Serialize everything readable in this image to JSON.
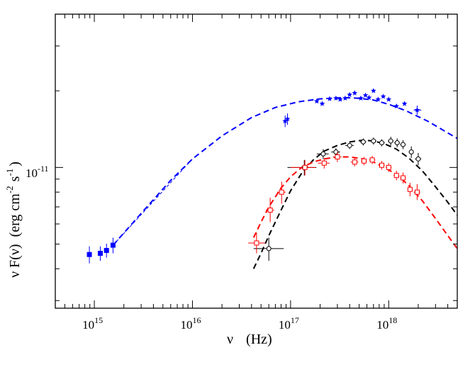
{
  "chart_data": {
    "type": "scatter",
    "title": "",
    "xlabel": "ν (Hz)",
    "ylabel": "ν F(ν) (erg cm-2 s-1)",
    "xscale": "log",
    "yscale": "log",
    "xlim": [
      400000000000000.0,
      5e+18
    ],
    "ylim": [
      2.8e-12,
      4e-11
    ],
    "y_reference_tick": {
      "base": "10",
      "exp": "-11",
      "value": 1e-11
    },
    "x_major_ticks": [
      {
        "base": "10",
        "exp": "15",
        "value": 1000000000000000.0
      },
      {
        "base": "10",
        "exp": "16",
        "value": 1e+16
      },
      {
        "base": "10",
        "exp": "17",
        "value": 1e+17
      },
      {
        "base": "10",
        "exp": "18",
        "value": 1e+18
      }
    ],
    "axis_label_parts": {
      "x_nu": "ν",
      "x_unit": "(Hz)",
      "y_nu": "ν",
      "y_F": "F(ν)",
      "y_unit_open": "(erg cm",
      "y_exp1": "-2",
      "y_s": "s",
      "y_exp2": "-1",
      "y_close": ")"
    },
    "legend": "none",
    "series": [
      {
        "name": "blue-squares-optical",
        "color": "#0000ff",
        "marker": "filled-square",
        "points": [
          {
            "x": 890000000000000.0,
            "y": 4.55e-12,
            "yerr": [
              3.5e-13,
              3.5e-13
            ]
          },
          {
            "x": 1150000000000000.0,
            "y": 4.6e-12,
            "yerr": [
              3e-13,
              3e-13
            ]
          },
          {
            "x": 1330000000000000.0,
            "y": 4.72e-12,
            "yerr": [
              3e-13,
              3e-13
            ]
          },
          {
            "x": 1550000000000000.0,
            "y": 4.95e-12,
            "yerr": [
              3.5e-13,
              3.5e-13
            ]
          }
        ]
      },
      {
        "name": "blue-stars-xray",
        "color": "#0000ff",
        "marker": "filled-star",
        "points": [
          {
            "x": 8.8e+16,
            "y": 1.52e-11,
            "xerr": [
              600000000000000.0,
              600000000000000.0
            ],
            "yerr": [
              8e-13,
              8e-13
            ]
          },
          {
            "x": 9.3e+16,
            "y": 1.55e-11,
            "xerr": [
              600000000000000.0,
              600000000000000.0
            ],
            "yerr": [
              8e-13,
              8e-13
            ]
          },
          {
            "x": 1.85e+17,
            "y": 1.82e-11
          },
          {
            "x": 2.1e+17,
            "y": 1.78e-11
          },
          {
            "x": 2.5e+17,
            "y": 1.86e-11
          },
          {
            "x": 2.9e+17,
            "y": 1.87e-11
          },
          {
            "x": 3.2e+17,
            "y": 1.85e-11
          },
          {
            "x": 3.6e+17,
            "y": 1.87e-11
          },
          {
            "x": 4e+17,
            "y": 1.93e-11
          },
          {
            "x": 4.5e+17,
            "y": 1.96e-11
          },
          {
            "x": 5.2e+17,
            "y": 1.87e-11
          },
          {
            "x": 5.8e+17,
            "y": 1.92e-11
          },
          {
            "x": 6.3e+17,
            "y": 1.88e-11
          },
          {
            "x": 7e+17,
            "y": 2e-11
          },
          {
            "x": 7.8e+17,
            "y": 1.85e-11
          },
          {
            "x": 8.8e+17,
            "y": 1.9e-11
          },
          {
            "x": 1e+18,
            "y": 1.85e-11
          },
          {
            "x": 1.2e+18,
            "y": 1.74e-11
          },
          {
            "x": 1.45e+18,
            "y": 1.78e-11
          },
          {
            "x": 1.95e+18,
            "y": 1.68e-11,
            "xerr": [
              1.5e+17,
              2e+17
            ],
            "yerr": [
              7e-13,
              7e-13
            ]
          }
        ]
      },
      {
        "name": "black-open-circles",
        "color": "#000000",
        "marker": "open-circle",
        "points": [
          {
            "x": 6e+16,
            "y": 4.8e-12,
            "xerr": [
              1.8e+16,
              2.5e+16
            ],
            "yerr": [
              5e-13,
              5e-13
            ]
          },
          {
            "x": 1.38e+17,
            "y": 1e-11,
            "xerr": [
              4.5e+16,
              4.5e+16
            ],
            "yerr": [
              7e-13,
              7e-13
            ]
          },
          {
            "x": 2.15e+17,
            "y": 1.13e-11,
            "xerr": [
              3e+16,
              3e+16
            ],
            "yerr": [
              5e-13,
              5e-13
            ]
          },
          {
            "x": 2.9e+17,
            "y": 1.15e-11,
            "xerr": [
              3e+16,
              3e+16
            ],
            "yerr": [
              4e-13,
              4e-13
            ]
          },
          {
            "x": 4e+17,
            "y": 1.22e-11,
            "xerr": [
              4e+16,
              4e+16
            ],
            "yerr": [
              4e-13,
              4e-13
            ]
          },
          {
            "x": 5.5e+17,
            "y": 1.26e-11,
            "xerr": [
              4e+16,
              4e+16
            ],
            "yerr": [
              4e-13,
              4e-13
            ]
          },
          {
            "x": 7e+17,
            "y": 1.27e-11,
            "xerr": [
              5e+16,
              5e+16
            ],
            "yerr": [
              4e-13,
              4e-13
            ]
          },
          {
            "x": 8.5e+17,
            "y": 1.25e-11,
            "xerr": [
              6e+16,
              6e+16
            ],
            "yerr": [
              4e-13,
              4e-13
            ]
          },
          {
            "x": 1.05e+18,
            "y": 1.27e-11,
            "xerr": [
              7e+16,
              7e+16
            ],
            "yerr": [
              5e-13,
              5e-13
            ]
          },
          {
            "x": 1.22e+18,
            "y": 1.25e-11,
            "xerr": [
              8e+16,
              8e+16
            ],
            "yerr": [
              5e-13,
              5e-13
            ]
          },
          {
            "x": 1.4e+18,
            "y": 1.23e-11,
            "xerr": [
              9e+16,
              9e+16
            ],
            "yerr": [
              5e-13,
              5e-13
            ]
          },
          {
            "x": 1.7e+18,
            "y": 1.15e-11,
            "xerr": [
              1e+17,
              1e+17
            ],
            "yerr": [
              6e-13,
              6e-13
            ]
          },
          {
            "x": 2e+18,
            "y": 1.08e-11,
            "xerr": [
              1.5e+17,
              1.5e+17
            ],
            "yerr": [
              6e-13,
              6e-13
            ]
          }
        ]
      },
      {
        "name": "red-open-squares",
        "color": "#ff0000",
        "marker": "open-square",
        "points": [
          {
            "x": 4.5e+16,
            "y": 5.05e-12,
            "xerr": [
              8000000000000000.0,
              1e+16
            ],
            "yerr": [
              4.5e-13,
              5e-13
            ]
          },
          {
            "x": 6.2e+16,
            "y": 6.8e-12,
            "xerr": [
              6000000000000000.0,
              6000000000000000.0
            ],
            "yerr": [
              7e-13,
              8e-13
            ]
          },
          {
            "x": 8.1e+16,
            "y": 8e-12,
            "xerr": [
              8000000000000000.0,
              8000000000000000.0
            ],
            "yerr": [
              8e-13,
              8e-13
            ]
          },
          {
            "x": 1.4e+17,
            "y": 1e-11,
            "xerr": [
              4e+16,
              4e+16
            ],
            "yerr": [
              7e-13,
              7e-13
            ]
          },
          {
            "x": 2.2e+17,
            "y": 1.04e-11,
            "xerr": [
              3e+16,
              3e+16
            ],
            "yerr": [
              5e-13,
              5e-13
            ]
          },
          {
            "x": 3e+17,
            "y": 1.1e-11,
            "xerr": [
              3e+16,
              3e+16
            ],
            "yerr": [
              5e-13,
              5e-13
            ]
          },
          {
            "x": 4.5e+17,
            "y": 1.05e-11,
            "xerr": [
              4e+16,
              4e+16
            ],
            "yerr": [
              4e-13,
              4e-13
            ]
          },
          {
            "x": 5.6e+17,
            "y": 1.06e-11,
            "xerr": [
              4e+16,
              4e+16
            ],
            "yerr": [
              4e-13,
              4e-13
            ]
          },
          {
            "x": 6.8e+17,
            "y": 1.07e-11,
            "xerr": [
              5e+16,
              5e+16
            ],
            "yerr": [
              4e-13,
              4e-13
            ]
          },
          {
            "x": 8.5e+17,
            "y": 1.02e-11,
            "xerr": [
              6e+16,
              6e+16
            ],
            "yerr": [
              4e-13,
              4e-13
            ]
          },
          {
            "x": 1e+18,
            "y": 1e-11,
            "xerr": [
              7e+16,
              7e+16
            ],
            "yerr": [
              4e-13,
              4e-13
            ]
          },
          {
            "x": 1.2e+18,
            "y": 9.3e-12,
            "xerr": [
              8e+16,
              8e+16
            ],
            "yerr": [
              4e-13,
              4e-13
            ]
          },
          {
            "x": 1.4e+18,
            "y": 9.1e-12,
            "xerr": [
              9e+16,
              9e+16
            ],
            "yerr": [
              4.5e-13,
              4.5e-13
            ]
          },
          {
            "x": 1.65e+18,
            "y": 8.2e-12,
            "xerr": [
              1e+17,
              1e+17
            ],
            "yerr": [
              5e-13,
              5e-13
            ]
          },
          {
            "x": 1.95e+18,
            "y": 8e-12,
            "xerr": [
              1.5e+17,
              1.5e+17
            ],
            "yerr": [
              5.5e-13,
              6e-13
            ]
          }
        ]
      }
    ],
    "curves": [
      {
        "name": "blue-model-fit",
        "color": "#0000ff",
        "style": "dashed",
        "x": [
          1550000000000000.0,
          3000000000000000.0,
          6000000000000000.0,
          1e+16,
          2e+16,
          4e+16,
          7e+16,
          1.2e+17,
          2e+17,
          3.5e+17,
          5e+17,
          7e+17,
          1e+18,
          1.5e+18,
          2.5e+18,
          5e+18
        ],
        "y": [
          4.95e-12,
          6.6e-12,
          8.9e-12,
          1.08e-11,
          1.33e-11,
          1.57e-11,
          1.72e-11,
          1.81e-11,
          1.86e-11,
          1.88e-11,
          1.87e-11,
          1.84e-11,
          1.77e-11,
          1.67e-11,
          1.52e-11,
          1.3e-11
        ]
      },
      {
        "name": "blue-extrapolation",
        "color": "#0000ff",
        "style": "thin-dashed",
        "x": [
          1550000000000000.0,
          1e+16
        ],
        "y": [
          4.95e-12,
          1.08e-11
        ]
      },
      {
        "name": "black-model-fit",
        "color": "#000000",
        "style": "dashed",
        "x": [
          4.2e+16,
          5e+16,
          6e+16,
          8e+16,
          1e+17,
          1.3e+17,
          1.7e+17,
          2.2e+17,
          3e+17,
          4e+17,
          5.5e+17,
          7e+17,
          9e+17,
          1.2e+18,
          1.6e+18,
          2.2e+18,
          3e+18,
          4e+18,
          5e+18
        ],
        "y": [
          4e-12,
          4.6e-12,
          5.4e-12,
          6.8e-12,
          8.1e-12,
          9.5e-12,
          1.07e-11,
          1.16e-11,
          1.22e-11,
          1.26e-11,
          1.28e-11,
          1.27e-11,
          1.24e-11,
          1.18e-11,
          1.09e-11,
          9.7e-12,
          8.4e-12,
          7.3e-12,
          6.5e-12
        ]
      },
      {
        "name": "red-model-fit",
        "color": "#ff0000",
        "style": "dashed",
        "x": [
          4.2e+16,
          5e+16,
          6e+16,
          8e+16,
          1e+17,
          1.3e+17,
          1.7e+17,
          2.2e+17,
          3e+17,
          4e+17,
          5.5e+17,
          7e+17,
          9e+17,
          1.2e+18,
          1.6e+18,
          2.2e+18,
          3e+18,
          4e+18,
          5e+18
        ],
        "y": [
          5.3e-12,
          6.1e-12,
          7e-12,
          8.3e-12,
          9.2e-12,
          1e-11,
          1.05e-11,
          1.08e-11,
          1.1e-11,
          1.1e-11,
          1.08e-11,
          1.05e-11,
          1e-11,
          9.4e-12,
          8.5e-12,
          7.4e-12,
          6.3e-12,
          5.4e-12,
          4.8e-12
        ]
      }
    ]
  }
}
